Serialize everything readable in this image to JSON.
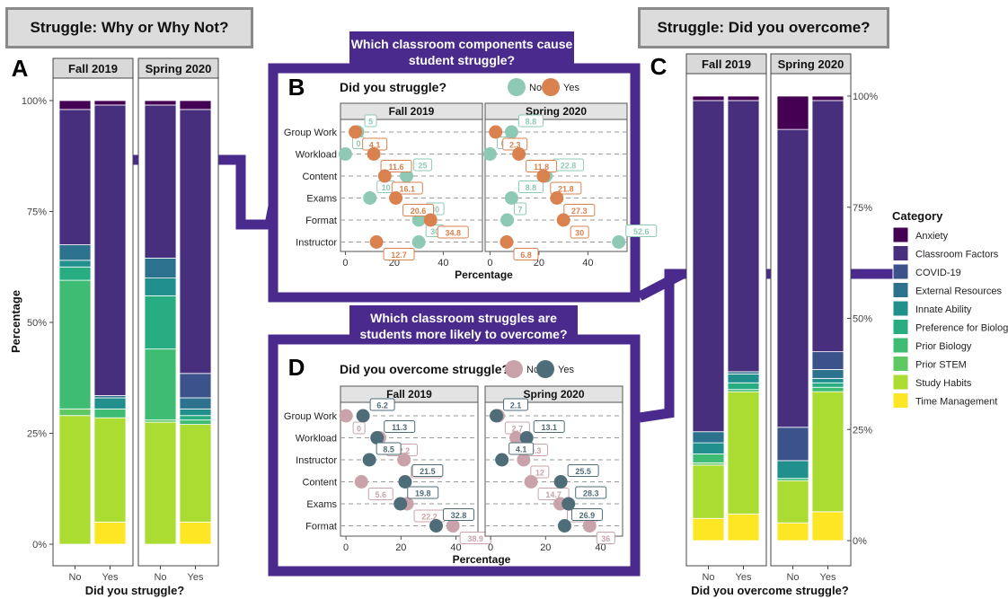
{
  "headers": {
    "left": "Struggle: Why or Why Not?",
    "right": "Struggle: Did you overcome?",
    "b_question": "Which classroom components cause student struggle?",
    "d_question": "Which classroom struggles are students more likely to overcome?"
  },
  "panel_letters": {
    "a": "A",
    "b": "B",
    "c": "C",
    "d": "D"
  },
  "colors": {
    "purple_frame": "#4a2a8c",
    "no_b": "#8ec9b5",
    "yes_b": "#d9824f",
    "no_d": "#c9a3a9",
    "yes_d": "#4f6d78",
    "Anxiety": "#440154",
    "Classroom Factors": "#472f7d",
    "COVID-19": "#3b528b",
    "External Resources": "#2c728e",
    "Innate Ability": "#21908d",
    "Preference for Biology": "#27ad81",
    "Prior Biology": "#3fbc73",
    "Prior STEM": "#5ec962",
    "Study Habits": "#aadc32",
    "Time Management": "#fde725"
  },
  "chart_data": [
    {
      "id": "A",
      "type": "bar",
      "stacked": true,
      "facets": [
        "Fall 2019",
        "Spring 2020"
      ],
      "categories": [
        "No",
        "Yes"
      ],
      "xlabel": "Did you struggle?",
      "ylabel": "Percentage",
      "yticks": [
        "0%",
        "25%",
        "50%",
        "75%",
        "100%"
      ],
      "ylim": [
        0,
        100
      ],
      "stack_order_bottom_to_top": [
        "Time Management",
        "Study Habits",
        "Prior STEM",
        "Prior Biology",
        "Preference for Biology",
        "Innate Ability",
        "External Resources",
        "COVID-19",
        "Classroom Factors",
        "Anxiety"
      ],
      "series": [
        {
          "name": "Time Management",
          "values": [
            [
              0,
              5
            ],
            [
              0,
              5
            ]
          ]
        },
        {
          "name": "Study Habits",
          "values": [
            [
              29,
              23.5
            ],
            [
              27.5,
              22
            ]
          ]
        },
        {
          "name": "Prior STEM",
          "values": [
            [
              1.5,
              0
            ],
            [
              0.5,
              0
            ]
          ]
        },
        {
          "name": "Prior Biology",
          "values": [
            [
              29,
              2
            ],
            [
              16,
              1
            ]
          ]
        },
        {
          "name": "Preference for Biology",
          "values": [
            [
              3,
              0
            ],
            [
              12,
              1
            ]
          ]
        },
        {
          "name": "Innate Ability",
          "values": [
            [
              1.5,
              2.5
            ],
            [
              4,
              1.5
            ]
          ]
        },
        {
          "name": "External Resources",
          "values": [
            [
              3.5,
              0.5
            ],
            [
              4.5,
              2.5
            ]
          ]
        },
        {
          "name": "COVID-19",
          "values": [
            [
              0,
              0
            ],
            [
              0,
              5.5
            ]
          ]
        },
        {
          "name": "Classroom Factors",
          "values": [
            [
              30.5,
              65.5
            ],
            [
              34.5,
              59.5
            ]
          ]
        },
        {
          "name": "Anxiety",
          "values": [
            [
              2,
              1
            ],
            [
              1,
              2
            ]
          ]
        }
      ]
    },
    {
      "id": "C",
      "type": "bar",
      "stacked": true,
      "facets": [
        "Fall 2019",
        "Spring 2020"
      ],
      "categories": [
        "No",
        "Yes"
      ],
      "xlabel": "Did you overcome struggle?",
      "yticks": [
        "0%",
        "25%",
        "50%",
        "75%",
        "100%"
      ],
      "ylim": [
        0,
        100
      ],
      "legend_title": "Category",
      "legend_items": [
        "Anxiety",
        "Classroom Factors",
        "COVID-19",
        "External Resources",
        "Innate Ability",
        "Preference for Biology",
        "Prior Biology",
        "Prior STEM",
        "Study Habits",
        "Time Management"
      ],
      "series": [
        {
          "name": "Time Management",
          "values": [
            [
              5,
              6
            ],
            [
              4,
              6.5
            ]
          ]
        },
        {
          "name": "Study Habits",
          "values": [
            [
              12,
              27.5
            ],
            [
              9.5,
              27
            ]
          ]
        },
        {
          "name": "Prior STEM",
          "values": [
            [
              0.5,
              0
            ],
            [
              0,
              0
            ]
          ]
        },
        {
          "name": "Prior Biology",
          "values": [
            [
              2,
              0.5
            ],
            [
              0.5,
              1
            ]
          ]
        },
        {
          "name": "Preference for Biology",
          "values": [
            [
              0,
              1.5
            ],
            [
              0,
              1
            ]
          ]
        },
        {
          "name": "Innate Ability",
          "values": [
            [
              2.5,
              2
            ],
            [
              4,
              1
            ]
          ]
        },
        {
          "name": "External Resources",
          "values": [
            [
              2.5,
              0.5
            ],
            [
              0,
              2
            ]
          ]
        },
        {
          "name": "COVID-19",
          "values": [
            [
              0,
              0
            ],
            [
              7.5,
              4
            ]
          ]
        },
        {
          "name": "Classroom Factors",
          "values": [
            [
              74.5,
              61
            ],
            [
              67,
              56.5
            ]
          ]
        },
        {
          "name": "Anxiety",
          "values": [
            [
              1,
              1
            ],
            [
              7.5,
              1
            ]
          ]
        }
      ]
    },
    {
      "id": "B",
      "type": "scatter",
      "title": "Did you struggle?",
      "legend": [
        "No",
        "Yes"
      ],
      "facets": [
        "Fall 2019",
        "Spring 2020"
      ],
      "rows": [
        "Group Work",
        "Workload",
        "Content",
        "Exams",
        "Format",
        "Instructor"
      ],
      "xlabel": "Percentage",
      "xticks": [
        "0",
        "20",
        "40"
      ],
      "xlim": [
        -2,
        56
      ],
      "series": [
        {
          "name": "No",
          "values": [
            [
              5,
              0,
              25,
              10,
              30,
              30
            ],
            [
              8.8,
              0,
              22.8,
              8.8,
              7,
              52.6
            ]
          ]
        },
        {
          "name": "Yes",
          "values": [
            [
              4.1,
              11.6,
              16.1,
              20.6,
              34.8,
              12.7
            ],
            [
              2.3,
              11.8,
              21.8,
              27.3,
              30,
              6.8
            ]
          ]
        }
      ],
      "labels": [
        {
          "name": "No",
          "values": [
            [
              "5",
              "0",
              "25",
              "10",
              "30",
              "30"
            ],
            [
              "8.8",
              "0",
              "22.8",
              "8.8",
              "7",
              "52.6"
            ]
          ]
        },
        {
          "name": "Yes",
          "values": [
            [
              "4.1",
              "11.6",
              "16.1",
              "20.6",
              "34.8",
              "12.7"
            ],
            [
              "2.3",
              "11.8",
              "21.8",
              "27.3",
              "30",
              "6.8"
            ]
          ]
        }
      ]
    },
    {
      "id": "D",
      "type": "scatter",
      "title": "Did you overcome struggle?",
      "legend": [
        "No",
        "Yes"
      ],
      "facets": [
        "Fall 2019",
        "Spring 2020"
      ],
      "rows": [
        "Group Work",
        "Workload",
        "Instructor",
        "Content",
        "Exams",
        "Format"
      ],
      "xlabel": "Percentage",
      "xticks": [
        "0",
        "20",
        "40"
      ],
      "xlim": [
        -2,
        48
      ],
      "series": [
        {
          "name": "No",
          "values": [
            [
              0,
              12.2,
              21.1,
              5.6,
              22.2,
              38.9
            ],
            [
              2.7,
              9.3,
              12,
              14.7,
              25.3,
              36
            ]
          ]
        },
        {
          "name": "Yes",
          "values": [
            [
              6.2,
              11.3,
              8.5,
              21.5,
              19.8,
              32.8
            ],
            [
              2.1,
              13.1,
              4.1,
              25.5,
              28.3,
              26.9
            ]
          ]
        }
      ],
      "labels": [
        {
          "name": "No",
          "values": [
            [
              "0",
              "12.2",
              "21.1",
              "5.6",
              "22.2",
              "38.9"
            ],
            [
              "2.7",
              "9.3",
              "12",
              "14.7",
              "25.3",
              "36"
            ]
          ]
        },
        {
          "name": "Yes",
          "values": [
            [
              "6.2",
              "11.3",
              "8.5",
              "21.5",
              "19.8",
              "32.8"
            ],
            [
              "2.1",
              "13.1",
              "4.1",
              "25.5",
              "28.3",
              "26.9"
            ]
          ]
        }
      ]
    }
  ]
}
